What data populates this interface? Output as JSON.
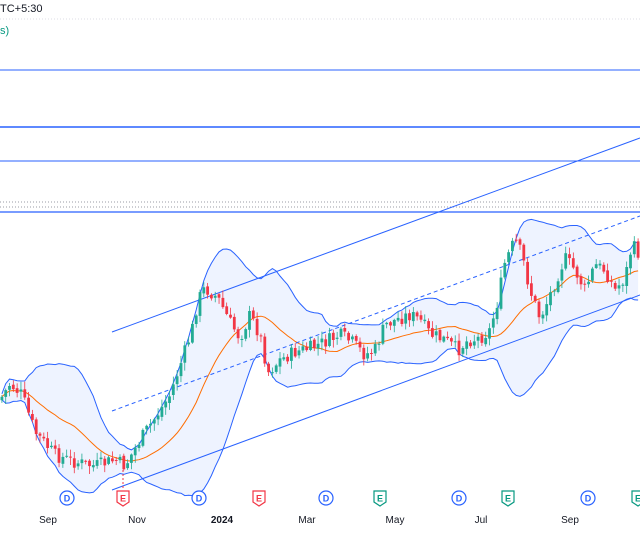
{
  "header": {
    "timezone_fragment": "TC+5:30",
    "indicator_fragment": "s)"
  },
  "colors": {
    "up": "#26a69a",
    "down": "#ef5350",
    "candle_up": "#22ab94",
    "candle_down": "#f23645",
    "band_line": "#2962ff",
    "band_fill": "#2962ff",
    "basis": "#ff6d00",
    "trendline": "#2962ff",
    "hline": "#2962ff",
    "event_blue": "#2962ff",
    "event_red": "#f23645",
    "event_green": "#089981"
  },
  "x_axis": {
    "labels": [
      "Sep",
      "Nov",
      "2024",
      "Mar",
      "May",
      "Jul",
      "Sep"
    ]
  },
  "events": [
    {
      "label": "D",
      "kind": "dividend"
    },
    {
      "label": "E",
      "kind": "earnings-red"
    },
    {
      "label": "D",
      "kind": "dividend"
    },
    {
      "label": "E",
      "kind": "earnings-red"
    },
    {
      "label": "D",
      "kind": "dividend"
    },
    {
      "label": "E",
      "kind": "earnings-green"
    },
    {
      "label": "D",
      "kind": "dividend"
    },
    {
      "label": "E",
      "kind": "earnings-green"
    },
    {
      "label": "D",
      "kind": "dividend"
    },
    {
      "label": "E",
      "kind": "earnings-green"
    }
  ]
}
